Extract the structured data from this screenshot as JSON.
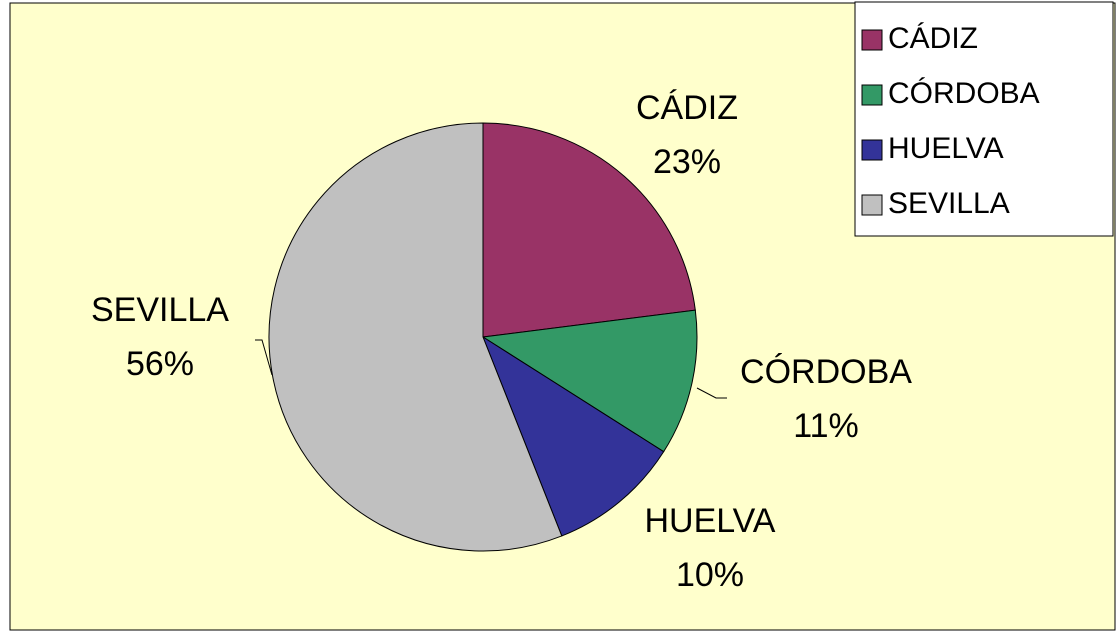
{
  "chart_data": {
    "type": "pie",
    "categories": [
      "CÁDIZ",
      "CÓRDOBA",
      "HUELVA",
      "SEVILLA"
    ],
    "values": [
      23,
      11,
      10,
      56
    ],
    "value_labels": [
      "23%",
      "11%",
      "10%",
      "56%"
    ],
    "colors": [
      "#993366",
      "#339966",
      "#333399",
      "#C0C0C0"
    ],
    "legend": "top-right"
  }
}
